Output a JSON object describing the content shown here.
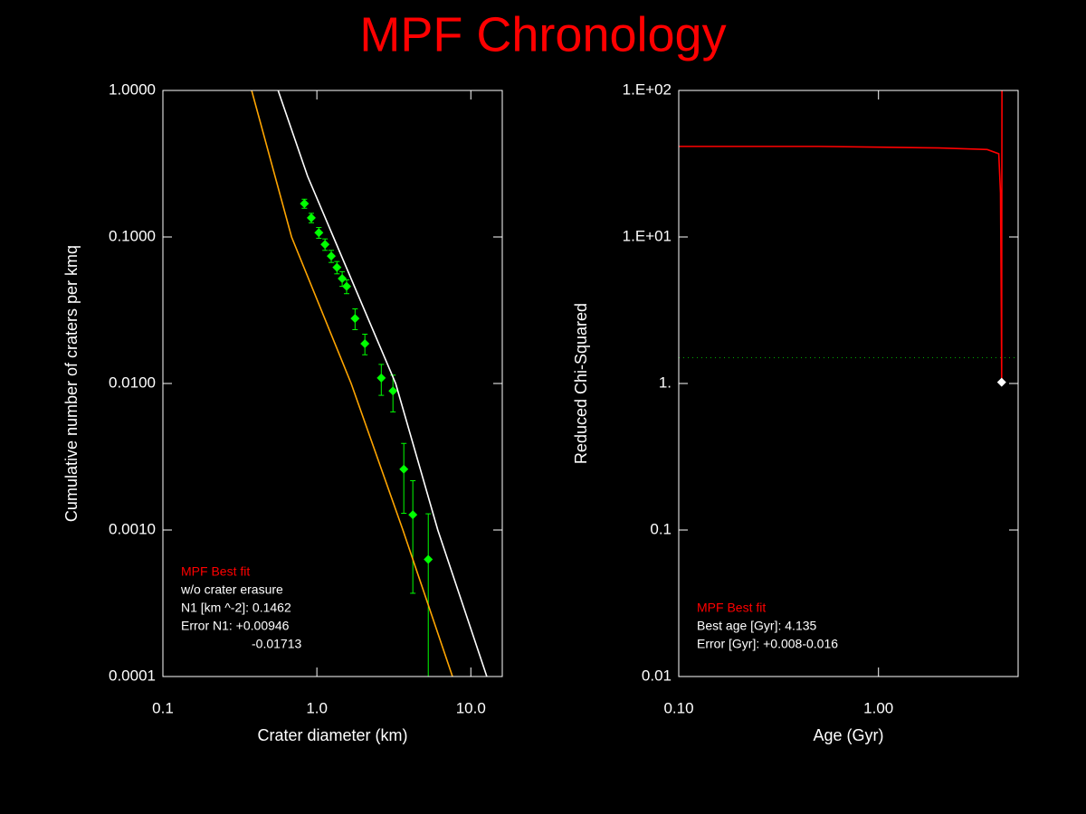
{
  "title": "MPF Chronology",
  "chart_data": [
    {
      "type": "scatter",
      "x_label": "Crater diameter (km)",
      "y_label": "Cumulative number of craters per kmq",
      "log_x": true,
      "log_y": true,
      "xlim": [
        0.1,
        16
      ],
      "ylim": [
        0.0001,
        1
      ],
      "xticks": [
        0.1,
        {
          "value": 1,
          "label": "1.0"
        },
        {
          "value": 10,
          "label": "10.0"
        }
      ],
      "yticks": [
        {
          "value": 1,
          "label": "1.0000"
        },
        {
          "value": 0.1,
          "label": "0.1000"
        },
        {
          "value": 0.01,
          "label": "0.0100"
        },
        {
          "value": 0.001,
          "label": "0.0010"
        },
        {
          "value": 0.0001,
          "label": "0.0001"
        }
      ],
      "series": [
        {
          "color": "#00ff00",
          "marker": "diamond",
          "x": [
            0.83,
            0.92,
            1.03,
            1.13,
            1.24,
            1.35,
            1.46,
            1.56,
            1.77,
            2.05,
            2.62,
            3.12,
            3.67,
            4.2,
            5.29
          ],
          "values": [
            0.169,
            0.135,
            0.107,
            0.089,
            0.074,
            0.062,
            0.052,
            0.046,
            0.0278,
            0.0187,
            0.0109,
            0.0089,
            0.0026,
            0.00127,
            0.00063
          ],
          "errors": [
            0.012,
            0.01,
            0.009,
            0.008,
            0.007,
            0.006,
            0.006,
            0.005,
            0.0045,
            0.003,
            0.0026,
            0.0025,
            0.0013,
            0.0009,
            0.00066
          ]
        },
        {
          "color": "#ffffff",
          "x": [
            0.56,
            0.87,
            1.28,
            3.25,
            6.1,
            12.7
          ],
          "values": [
            1,
            0.26,
            0.1,
            0.01,
            0.001,
            0.0001
          ]
        },
        {
          "color": "#ffa500",
          "x": [
            0.377,
            0.685,
            1.67,
            3.62,
            7.6
          ],
          "values": [
            1,
            0.1,
            0.01,
            0.001,
            0.0001
          ]
        }
      ],
      "annotations": [
        {
          "text": "MPF Best fit",
          "color": "#ff0000"
        },
        {
          "text": "w/o crater erasure",
          "color": "#ffffff"
        },
        {
          "text": "N1 [km ^-2]: 0.1462",
          "color": "#ffffff"
        },
        {
          "text": "Error N1: +0.00946",
          "color": "#ffffff"
        },
        {
          "text": "-0.01713",
          "color": "#ffffff"
        }
      ]
    },
    {
      "type": "line",
      "x_label": "Age (Gyr)",
      "y_label": "Reduced Chi-Squared",
      "log_x": true,
      "log_y": true,
      "xlim": [
        0.1,
        5
      ],
      "ylim": [
        0.01,
        100
      ],
      "xticks": [
        {
          "value": 0.1,
          "label": "0.10"
        },
        {
          "value": 1,
          "label": "1.00"
        }
      ],
      "yticks": [
        {
          "value": 100,
          "label": "1.E+02"
        },
        {
          "value": 10,
          "label": "1.E+01"
        },
        {
          "value": 1,
          "label": "1."
        },
        0.1,
        0.01
      ],
      "series": [
        {
          "color": "#ff0000",
          "x": [
            0.1,
            0.5,
            1.0,
            2.0,
            3.5,
            4.0,
            4.08,
            4.12,
            4.135,
            4.14,
            4.15
          ],
          "values": [
            41.5,
            41.5,
            41,
            40.5,
            39.5,
            37,
            20,
            3,
            1.02,
            10,
            100
          ]
        }
      ],
      "best_fit": {
        "x": 4.135,
        "value": 1.02,
        "color": "#ffffff"
      },
      "reference_line": {
        "value": 1.5,
        "color": "#00aa00"
      },
      "annotations": [
        {
          "text": "MPF Best fit",
          "color": "#ff0000"
        },
        {
          "text": "Best age [Gyr]: 4.135",
          "color": "#ffffff"
        },
        {
          "text": "Error [Gyr]: +0.008-0.016",
          "color": "#ffffff"
        }
      ]
    }
  ]
}
